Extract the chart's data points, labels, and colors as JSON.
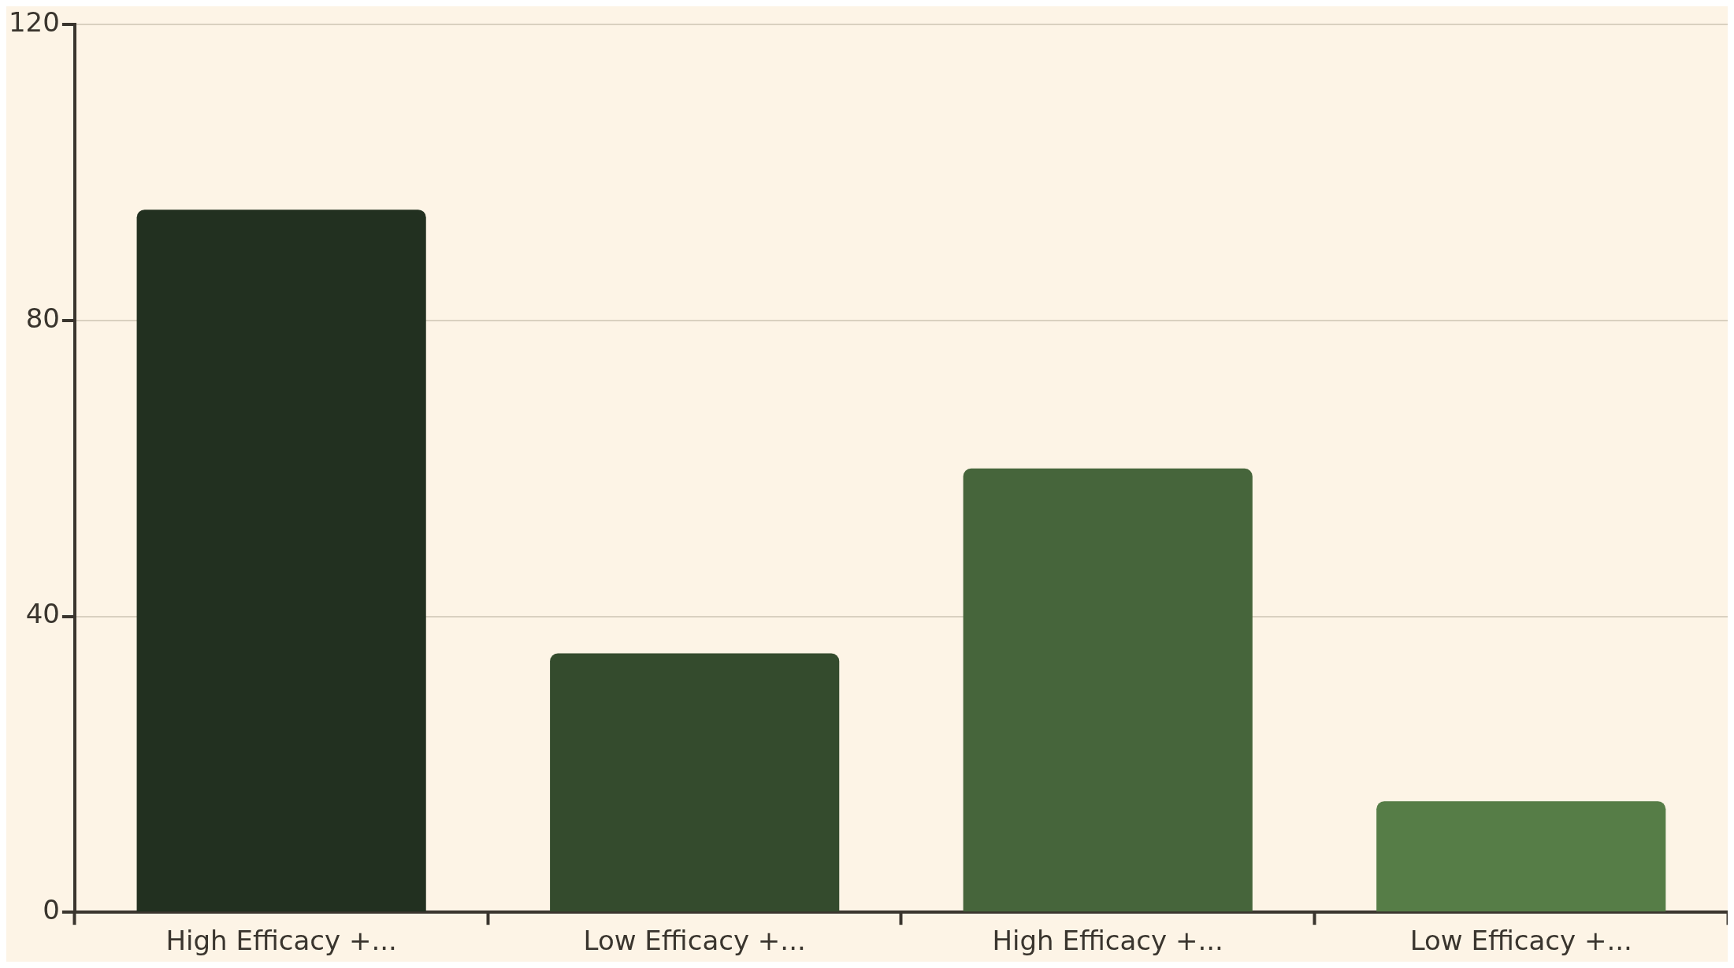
{
  "chart_data": {
    "type": "bar",
    "categories": [
      "High Efficacy +...",
      "Low Efficacy +...",
      "High Efficacy +...",
      "Low Efficacy +..."
    ],
    "values": [
      95,
      35,
      60,
      15
    ],
    "colors": [
      "#223020",
      "#344b2d",
      "#46653b",
      "#567d47"
    ],
    "ylim": [
      0,
      120
    ],
    "yticks": [
      0,
      40,
      80,
      120
    ],
    "grid": "y",
    "legend": false
  }
}
